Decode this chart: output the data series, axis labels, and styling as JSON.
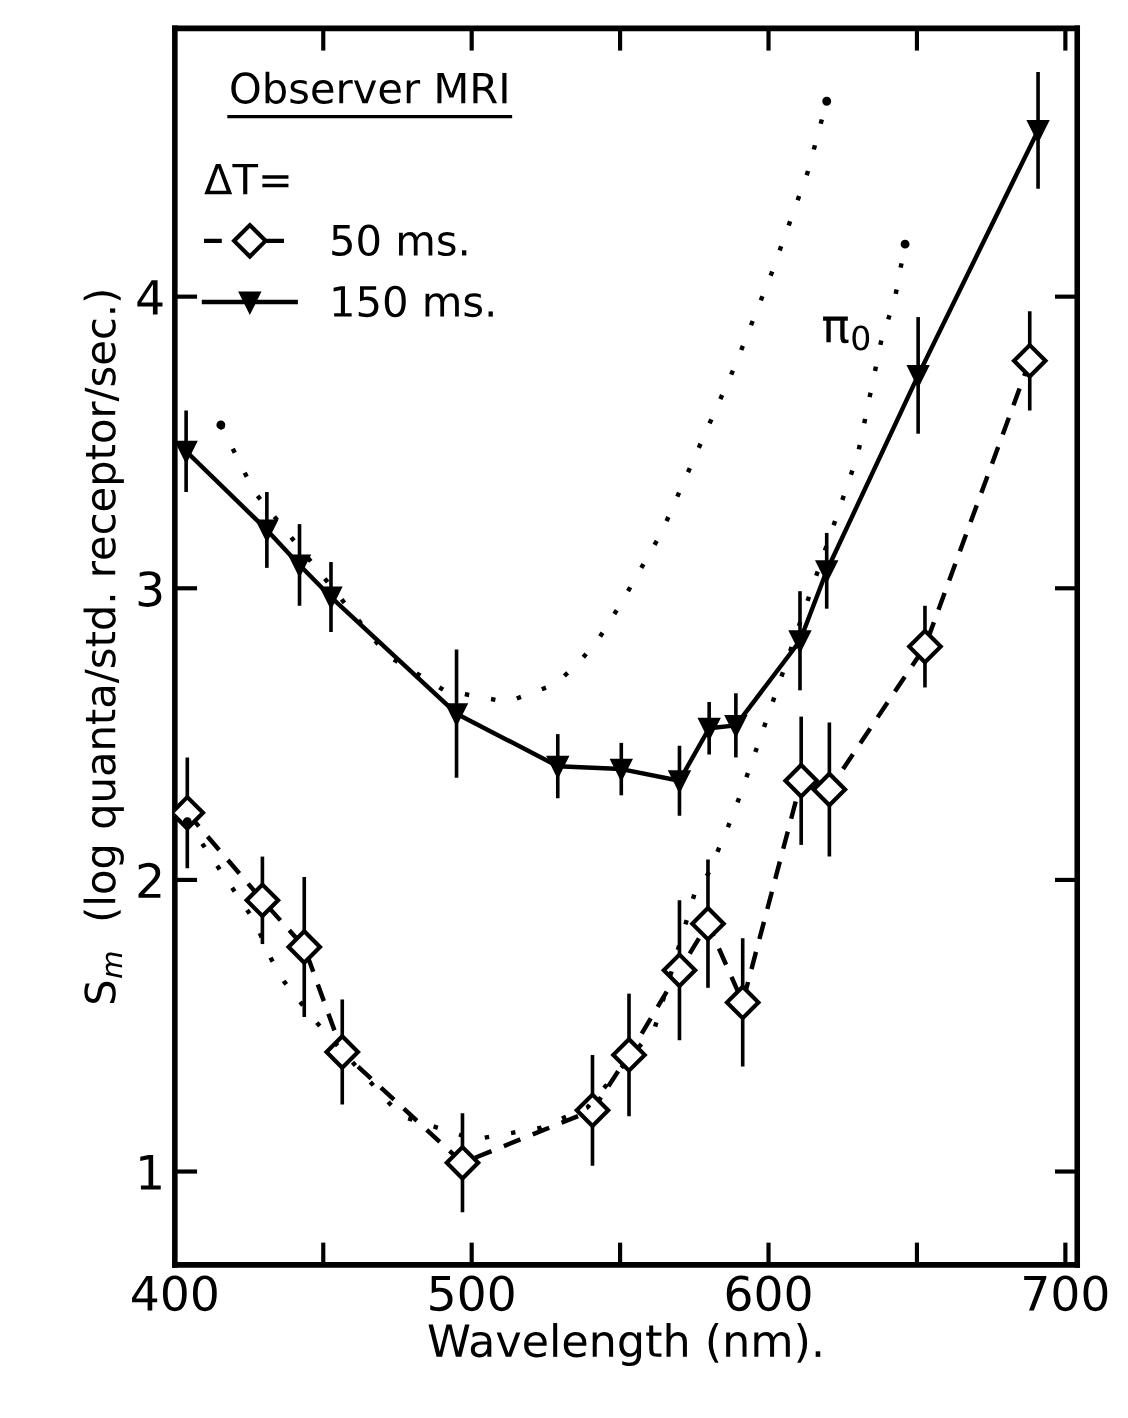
{
  "chart_data": {
    "type": "line",
    "xlabel": "Wavelength (nm).",
    "ylabel": "S$_{m}$  (log quanta/std. receptor/sec.)",
    "legend_title": "ΔT=",
    "legend": "top left",
    "xlim": [
      400,
      704
    ],
    "ylim": [
      0.68,
      4.92
    ],
    "xticks": [
      400,
      {
        "value": 450,
        "label": null
      },
      500,
      {
        "value": 550,
        "label": null
      },
      600,
      {
        "value": 650,
        "label": null
      },
      700
    ],
    "yticks": [
      1,
      2,
      3,
      4
    ],
    "annotations": [
      "Observer MRI",
      "π$_{0}$"
    ],
    "series": [
      {
        "name": "50 ms.",
        "color": "#000000",
        "marker": "diamond",
        "line_style": "dashed",
        "x": [
          404.2,
          429.5,
          443.6,
          456.4,
          496.9,
          540.7,
          553,
          570,
          579.6,
          591.3,
          611,
          620.5,
          652.7,
          688
        ],
        "values": [
          2.23,
          1.93,
          1.77,
          1.41,
          1.03,
          1.21,
          1.4,
          1.69,
          1.85,
          1.58,
          2.34,
          2.31,
          2.8,
          3.78
        ],
        "errors": [
          0.19,
          0.15,
          0.24,
          0.18,
          0.17,
          0.19,
          0.21,
          0.24,
          0.22,
          0.22,
          0.22,
          0.23,
          0.14,
          0.17
        ]
      },
      {
        "name": "150 ms.",
        "color": "#000000",
        "marker": "triangle",
        "line_style": "solid",
        "x": [
          403.8,
          431,
          442,
          452.6,
          494.9,
          529,
          550.4,
          570,
          580,
          589,
          610.6,
          619.6,
          650.4,
          690.8
        ],
        "values": [
          3.47,
          3.2,
          3.08,
          2.97,
          2.57,
          2.39,
          2.38,
          2.34,
          2.52,
          2.53,
          2.82,
          3.06,
          3.73,
          4.57
        ],
        "errors": [
          0.14,
          0.13,
          0.14,
          0.12,
          0.22,
          0.11,
          0.09,
          0.12,
          0.09,
          0.11,
          0.17,
          0.13,
          0.2,
          0.2
        ]
      },
      {
        "color": "#000000",
        "marker": "none",
        "line_style": "dotted",
        "x": [
          415.5,
          426.8,
          471.5,
          490.8,
          512,
          527.9,
          535.7,
          543,
          550.4,
          563.9,
          577.3,
          588.6,
          601,
          613.3,
          619.6
        ],
        "values": [
          3.56,
          3.33,
          2.77,
          2.65,
          2.61,
          2.67,
          2.74,
          2.83,
          2.95,
          3.19,
          3.5,
          3.76,
          4.08,
          4.43,
          4.67
        ]
      },
      {
        "color": "#000000",
        "marker": "none",
        "line_style": "dotted",
        "x": [
          404.2,
          426.8,
          432.4,
          436.9,
          447,
          476.2,
          501,
          523.4,
          539,
          561.6,
          575,
          579.6,
          586.3,
          589.7,
          597,
          626.8,
          630.1,
          638,
          642.5,
          646
        ],
        "values": [
          2.2,
          1.86,
          1.73,
          1.65,
          1.52,
          1.19,
          1.11,
          1.15,
          1.22,
          1.49,
          1.95,
          2.02,
          2.18,
          2.27,
          2.48,
          3.36,
          3.46,
          3.85,
          3.99,
          4.18
        ]
      }
    ]
  }
}
